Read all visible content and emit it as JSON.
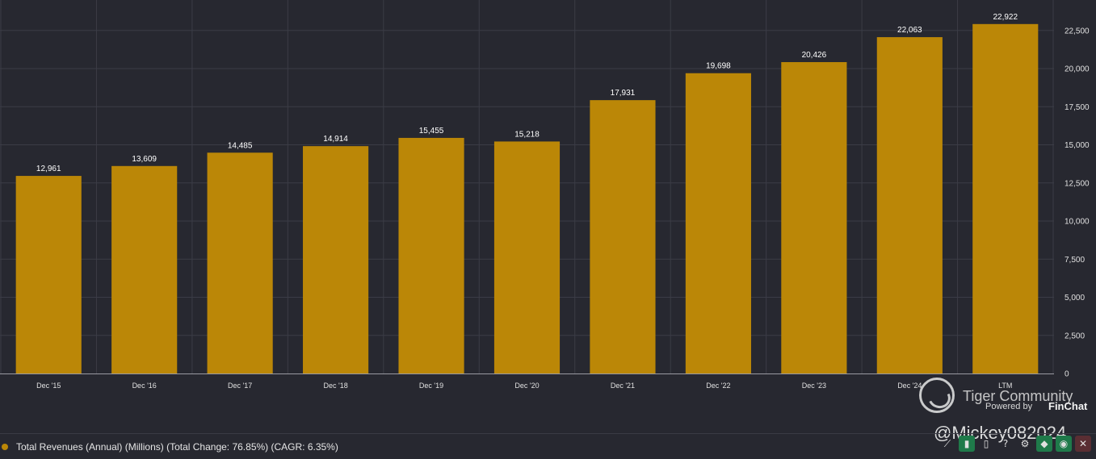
{
  "chart_data": {
    "type": "bar",
    "categories": [
      "Dec '15",
      "Dec '16",
      "Dec '17",
      "Dec '18",
      "Dec '19",
      "Dec '20",
      "Dec '21",
      "Dec '22",
      "Dec '23",
      "Dec '24",
      "LTM"
    ],
    "values": [
      12961,
      13609,
      14485,
      14914,
      15455,
      15218,
      17931,
      19698,
      20426,
      22063,
      22922
    ],
    "data_labels": [
      "12,961",
      "13,609",
      "14,485",
      "14,914",
      "15,455",
      "15,218",
      "17,931",
      "19,698",
      "20,426",
      "22,063",
      "22,922"
    ],
    "yticks": [
      "0",
      "2,500",
      "5,000",
      "7,500",
      "10,000",
      "12,500",
      "15,000",
      "17,500",
      "20,000",
      "22,500"
    ],
    "ylim": [
      0,
      24500
    ],
    "y_axis_side": "right",
    "grid": true,
    "bar_color": "#bb8707"
  },
  "legend": {
    "text": "Total Revenues (Annual) (Millions) (Total Change: 76.85%) (CAGR: 6.35%)",
    "color": "#bb8707"
  },
  "watermark": {
    "title": "Tiger Community",
    "powered_by": "Powered by",
    "brand": "FinChat",
    "handle": "@Mickey082024"
  },
  "toolbar": {
    "buttons": [
      {
        "name": "line-chart-icon",
        "glyph": "⟋",
        "style": "plain"
      },
      {
        "name": "bar-chart-icon",
        "glyph": "▮",
        "style": "green"
      },
      {
        "name": "column-chart-icon",
        "glyph": "▯",
        "style": "plain"
      },
      {
        "name": "help-icon",
        "glyph": "?",
        "style": "plain"
      },
      {
        "name": "gear-icon",
        "glyph": "⚙",
        "style": "plain"
      },
      {
        "name": "tag-icon",
        "glyph": "◆",
        "style": "green"
      },
      {
        "name": "eye-icon",
        "glyph": "◉",
        "style": "green"
      },
      {
        "name": "close-icon",
        "glyph": "✕",
        "style": "red"
      }
    ]
  }
}
